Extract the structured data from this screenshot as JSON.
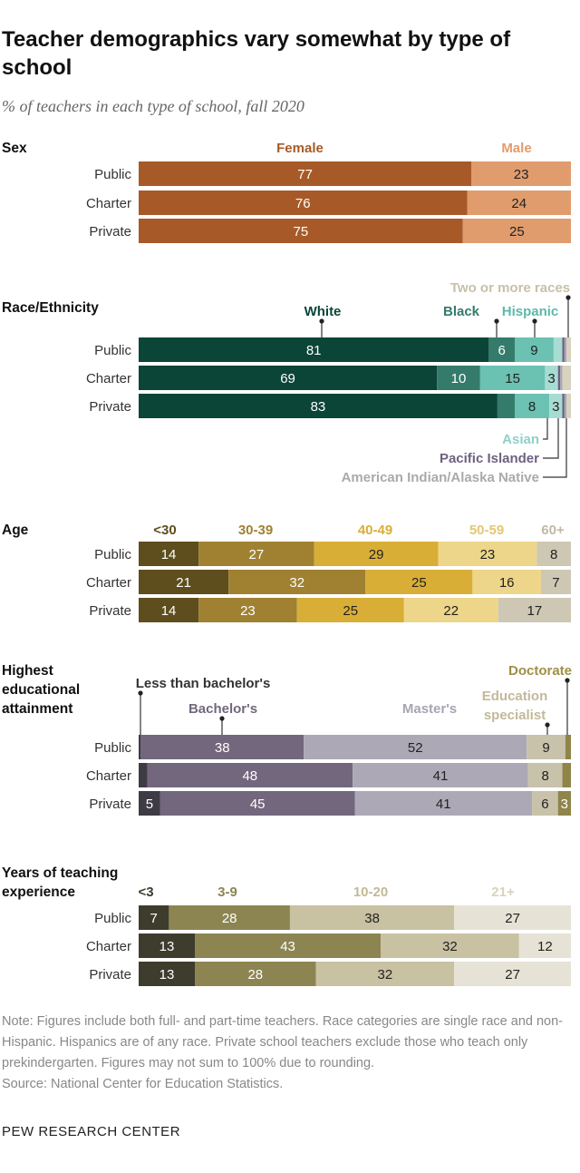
{
  "title": "Teacher demographics vary somewhat by type of school",
  "subtitle": "% of teachers in each type of school, fall 2020",
  "note": "Note: Figures include both full- and part-time teachers. Race categories are single race and non-Hispanic. Hispanics are of any race. Private school teachers exclude those who teach only prekindergarten. Figures may not sum to 100% due to rounding.",
  "source": "Source: National Center for Education Statistics.",
  "brand": "PEW RESEARCH CENTER",
  "chart_data": [
    {
      "type": "bar",
      "stacked": true,
      "orientation": "horizontal",
      "title": "Sex",
      "categories": [
        "Public",
        "Charter",
        "Private"
      ],
      "series": [
        {
          "name": "Female",
          "color": "#A75A28",
          "text_color": "#ffffff",
          "label_color": "#A75A28",
          "values": [
            77,
            76,
            75
          ],
          "labels": [
            "77",
            "76",
            "75"
          ]
        },
        {
          "name": "Male",
          "color": "#E19C6D",
          "text_color": "#222222",
          "label_color": "#E19C6D",
          "values": [
            23,
            24,
            25
          ],
          "labels": [
            "23",
            "24",
            "25"
          ]
        }
      ]
    },
    {
      "type": "bar",
      "stacked": true,
      "orientation": "horizontal",
      "title": "Race/Ethnicity",
      "categories": [
        "Public",
        "Charter",
        "Private"
      ],
      "series": [
        {
          "name": "White",
          "color": "#0B4537",
          "text_color": "#ffffff",
          "label_color": "#0B4537",
          "values": [
            81,
            69,
            83
          ],
          "labels": [
            "81",
            "69",
            "83"
          ]
        },
        {
          "name": "Black",
          "color": "#357B6B",
          "text_color": "#ffffff",
          "label_color": "#357B6B",
          "values": [
            6,
            10,
            4
          ],
          "labels": [
            "6",
            "10",
            ""
          ]
        },
        {
          "name": "Hispanic",
          "color": "#6BC1B2",
          "text_color": "#222222",
          "label_color": "#5DB9A9",
          "values": [
            9,
            15,
            8
          ],
          "labels": [
            "9",
            "15",
            "8"
          ]
        },
        {
          "name": "Asian",
          "color": "#A7DCD3",
          "text_color": "#222222",
          "label_color": "#8FD1C6",
          "values": [
            2,
            3,
            3
          ],
          "labels": [
            "",
            "3",
            "3"
          ]
        },
        {
          "name": "Pacific Islander",
          "color": "#6E6180",
          "text_color": "#ffffff",
          "label_color": "#6E6180",
          "values": [
            0.5,
            0.5,
            0.5
          ],
          "labels": [
            "",
            "",
            ""
          ]
        },
        {
          "name": "American Indian/Alaska Native",
          "color": "#A9A5B5",
          "text_color": "#222222",
          "label_color": "#AAAAAA",
          "values": [
            0.5,
            0.5,
            0.5
          ],
          "labels": [
            "",
            "",
            ""
          ]
        },
        {
          "name": "Two or more races",
          "color": "#D8D2BE",
          "text_color": "#222222",
          "label_color": "#C8C0A8",
          "values": [
            1,
            2,
            1
          ],
          "labels": [
            "",
            "",
            ""
          ]
        }
      ]
    },
    {
      "type": "bar",
      "stacked": true,
      "orientation": "horizontal",
      "title": "Age",
      "categories": [
        "Public",
        "Charter",
        "Private"
      ],
      "series": [
        {
          "name": "<30",
          "color": "#5E4E1E",
          "text_color": "#ffffff",
          "label_color": "#5E4E1E",
          "values": [
            14,
            21,
            14
          ],
          "labels": [
            "14",
            "21",
            "14"
          ]
        },
        {
          "name": "30-39",
          "color": "#A08132",
          "text_color": "#ffffff",
          "label_color": "#A08132",
          "values": [
            27,
            32,
            23
          ],
          "labels": [
            "27",
            "32",
            "23"
          ]
        },
        {
          "name": "40-49",
          "color": "#D9AE36",
          "text_color": "#222222",
          "label_color": "#D9AE36",
          "values": [
            29,
            25,
            25
          ],
          "labels": [
            "29",
            "25",
            "25"
          ]
        },
        {
          "name": "50-59",
          "color": "#EDD689",
          "text_color": "#222222",
          "label_color": "#E3C775",
          "values": [
            23,
            16,
            22
          ],
          "labels": [
            "23",
            "16",
            "22"
          ]
        },
        {
          "name": "60+",
          "color": "#CEC7B3",
          "text_color": "#222222",
          "label_color": "#C0B9A3",
          "values": [
            8,
            7,
            17
          ],
          "labels": [
            "8",
            "7",
            "17"
          ]
        }
      ]
    },
    {
      "type": "bar",
      "stacked": true,
      "orientation": "horizontal",
      "title": "Highest educational attainment",
      "title_lines": [
        "Highest",
        "educational",
        "attainment"
      ],
      "categories": [
        "Public",
        "Charter",
        "Private"
      ],
      "series": [
        {
          "name": "Less than bachelor's",
          "color": "#3E3B44",
          "text_color": "#ffffff",
          "label_color": "#333333",
          "values": [
            0.5,
            2,
            5
          ],
          "labels": [
            "",
            "",
            "5"
          ]
        },
        {
          "name": "Bachelor's",
          "color": "#72677D",
          "text_color": "#ffffff",
          "label_color": "#72677D",
          "values": [
            38,
            48,
            45
          ],
          "labels": [
            "38",
            "48",
            "45"
          ]
        },
        {
          "name": "Master's",
          "color": "#ADA8B6",
          "text_color": "#222222",
          "label_color": "#A9A4B4",
          "values": [
            52,
            41,
            41
          ],
          "labels": [
            "52",
            "41",
            "41"
          ]
        },
        {
          "name": "Education specialist",
          "color": "#C8C2AB",
          "text_color": "#222222",
          "label_color": "#C2B99A",
          "values": [
            9,
            8,
            6
          ],
          "labels": [
            "9",
            "8",
            "6"
          ]
        },
        {
          "name": "Doctorate",
          "color": "#8F8449",
          "text_color": "#ffffff",
          "label_color": "#A08F45",
          "values": [
            1.3,
            2,
            3
          ],
          "labels": [
            "",
            "",
            "3"
          ]
        }
      ]
    },
    {
      "type": "bar",
      "stacked": true,
      "orientation": "horizontal",
      "title": "Years of teaching experience",
      "title_lines": [
        "Years of teaching",
        "experience"
      ],
      "categories": [
        "Public",
        "Charter",
        "Private"
      ],
      "series": [
        {
          "name": "<3",
          "color": "#3E3C2D",
          "text_color": "#ffffff",
          "label_color": "#3E3C2D",
          "values": [
            7,
            13,
            13
          ],
          "labels": [
            "7",
            "13",
            "13"
          ]
        },
        {
          "name": "3-9",
          "color": "#8C8552",
          "text_color": "#ffffff",
          "label_color": "#8C8552",
          "values": [
            28,
            43,
            28
          ],
          "labels": [
            "28",
            "43",
            "28"
          ]
        },
        {
          "name": "10-20",
          "color": "#C8C1A2",
          "text_color": "#222222",
          "label_color": "#C2BA96",
          "values": [
            38,
            32,
            32
          ],
          "labels": [
            "38",
            "32",
            "32"
          ]
        },
        {
          "name": "21+",
          "color": "#E6E3D6",
          "text_color": "#222222",
          "label_color": "#D9D3BD",
          "values": [
            27,
            12,
            27
          ],
          "labels": [
            "27",
            "12",
            "27"
          ]
        }
      ]
    }
  ]
}
